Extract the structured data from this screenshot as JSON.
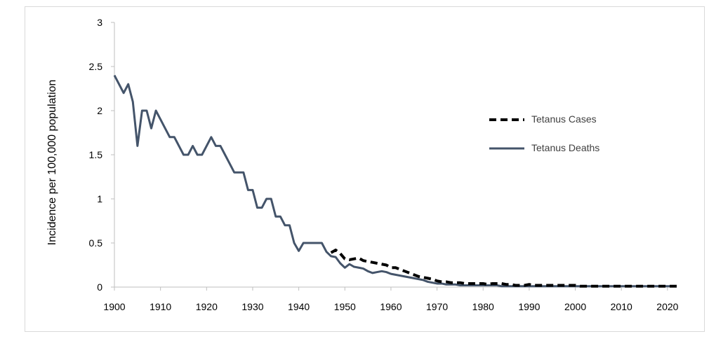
{
  "chart_data": {
    "type": "line",
    "title": "",
    "xlabel": "",
    "ylabel": "Incidence per 100,000 population",
    "xlim": [
      1900,
      2022
    ],
    "ylim": [
      0,
      3
    ],
    "xticks": [
      "1900",
      "1910",
      "1920",
      "1930",
      "1940",
      "1950",
      "1960",
      "1970",
      "1980",
      "1990",
      "2000",
      "2010",
      "2020"
    ],
    "yticks": [
      "0",
      "0.5",
      "1",
      "1.5",
      "2",
      "2.5",
      "3"
    ],
    "grid": false,
    "legend_position": "right",
    "series": [
      {
        "name": "Tetanus Cases",
        "color": "#000000",
        "style": "dashed",
        "x": [
          1947,
          1948,
          1949,
          1950,
          1951,
          1952,
          1953,
          1954,
          1955,
          1956,
          1957,
          1958,
          1959,
          1960,
          1961,
          1962,
          1963,
          1964,
          1965,
          1966,
          1967,
          1968,
          1969,
          1970,
          1971,
          1972,
          1973,
          1974,
          1975,
          1976,
          1977,
          1978,
          1979,
          1980,
          1981,
          1982,
          1983,
          1984,
          1985,
          1986,
          1987,
          1988,
          1989,
          1990,
          1991,
          1992,
          1993,
          1994,
          1995,
          1996,
          1997,
          1998,
          1999,
          2000,
          2001,
          2002,
          2003,
          2004,
          2005,
          2006,
          2007,
          2008,
          2009,
          2010,
          2011,
          2012,
          2013,
          2014,
          2015,
          2016,
          2017,
          2018,
          2019,
          2020,
          2021,
          2022
        ],
        "values": [
          0.39,
          0.42,
          0.38,
          0.32,
          0.31,
          0.32,
          0.33,
          0.3,
          0.29,
          0.28,
          0.27,
          0.26,
          0.25,
          0.22,
          0.22,
          0.2,
          0.18,
          0.16,
          0.14,
          0.12,
          0.11,
          0.1,
          0.09,
          0.07,
          0.06,
          0.06,
          0.05,
          0.05,
          0.05,
          0.04,
          0.04,
          0.04,
          0.04,
          0.04,
          0.03,
          0.04,
          0.04,
          0.04,
          0.03,
          0.03,
          0.02,
          0.02,
          0.02,
          0.03,
          0.02,
          0.02,
          0.02,
          0.02,
          0.02,
          0.02,
          0.02,
          0.02,
          0.02,
          0.02,
          0.01,
          0.01,
          0.01,
          0.01,
          0.01,
          0.01,
          0.01,
          0.01,
          0.01,
          0.01,
          0.01,
          0.01,
          0.01,
          0.01,
          0.01,
          0.01,
          0.01,
          0.01,
          0.01,
          0.01,
          0.01,
          0.01
        ]
      },
      {
        "name": "Tetanus Deaths",
        "color": "#44546a",
        "style": "solid",
        "x": [
          1900,
          1901,
          1902,
          1903,
          1904,
          1905,
          1906,
          1907,
          1908,
          1909,
          1910,
          1911,
          1912,
          1913,
          1914,
          1915,
          1916,
          1917,
          1918,
          1919,
          1920,
          1921,
          1922,
          1923,
          1924,
          1925,
          1926,
          1927,
          1928,
          1929,
          1930,
          1931,
          1932,
          1933,
          1934,
          1935,
          1936,
          1937,
          1938,
          1939,
          1940,
          1941,
          1942,
          1943,
          1944,
          1945,
          1946,
          1947,
          1948,
          1949,
          1950,
          1951,
          1952,
          1953,
          1954,
          1955,
          1956,
          1957,
          1958,
          1959,
          1960,
          1961,
          1962,
          1963,
          1964,
          1965,
          1966,
          1967,
          1968,
          1969,
          1970,
          1971,
          1972,
          1973,
          1974,
          1975,
          1976,
          1977,
          1978,
          1979,
          1980,
          1981,
          1982,
          1983,
          1984,
          1985,
          1986,
          1987,
          1988,
          1989,
          1990,
          1991,
          1992,
          1993,
          1994,
          1995,
          1996,
          1997,
          1998,
          1999,
          2000,
          2001,
          2002,
          2003,
          2004,
          2005,
          2006,
          2007,
          2008,
          2009,
          2010,
          2011,
          2012,
          2013,
          2014,
          2015,
          2016,
          2017,
          2018,
          2019,
          2020,
          2021,
          2022
        ],
        "values": [
          2.4,
          2.3,
          2.2,
          2.3,
          2.1,
          1.6,
          2.0,
          2.0,
          1.8,
          2.0,
          1.9,
          1.8,
          1.7,
          1.7,
          1.6,
          1.5,
          1.5,
          1.6,
          1.5,
          1.5,
          1.6,
          1.7,
          1.6,
          1.6,
          1.5,
          1.4,
          1.3,
          1.3,
          1.3,
          1.1,
          1.1,
          0.9,
          0.9,
          1.0,
          1.0,
          0.8,
          0.8,
          0.7,
          0.7,
          0.5,
          0.41,
          0.5,
          0.5,
          0.5,
          0.5,
          0.5,
          0.4,
          0.35,
          0.34,
          0.27,
          0.22,
          0.26,
          0.23,
          0.22,
          0.21,
          0.18,
          0.16,
          0.17,
          0.18,
          0.17,
          0.15,
          0.14,
          0.13,
          0.12,
          0.11,
          0.1,
          0.09,
          0.08,
          0.06,
          0.05,
          0.04,
          0.04,
          0.03,
          0.03,
          0.03,
          0.02,
          0.02,
          0.02,
          0.02,
          0.02,
          0.02,
          0.02,
          0.02,
          0.02,
          0.01,
          0.01,
          0.01,
          0.01,
          0.01,
          0.01,
          0.01,
          0.01,
          0.01,
          0.01,
          0.01,
          0.01,
          0.01,
          0.01,
          0.01,
          0.01,
          0.01,
          0.01,
          0.01,
          0.01,
          0.01,
          0.01,
          0.01,
          0.01,
          0.01,
          0.01,
          0.01,
          0.01,
          0.01,
          0.01,
          0.01,
          0.01,
          0.01,
          0.01,
          0.01,
          0.01,
          0.01,
          0.01,
          0.01
        ]
      }
    ]
  }
}
